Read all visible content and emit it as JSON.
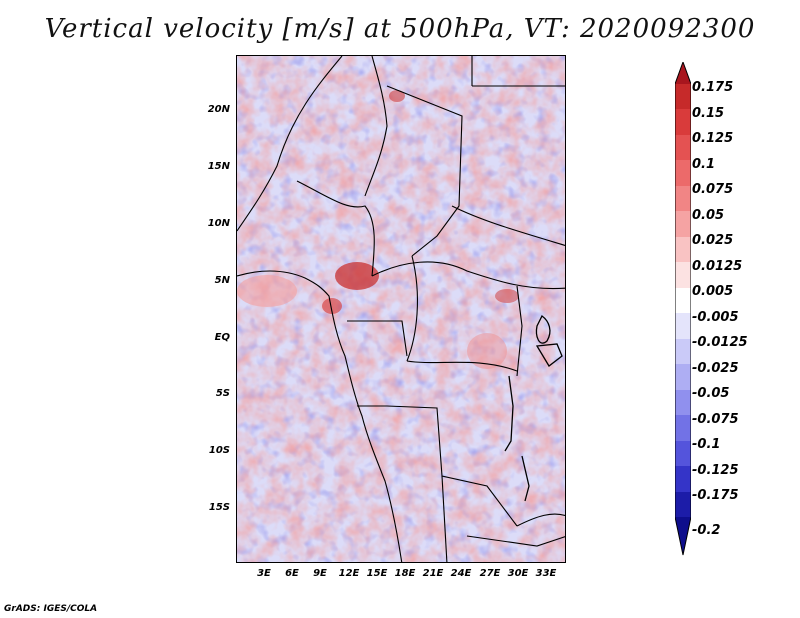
{
  "title": "Vertical velocity [m/s] at 500hPa, VT: 2020092300",
  "credit": "GrADS: IGES/COLA",
  "map": {
    "lat_labels": [
      "20N",
      "15N",
      "10N",
      "5N",
      "EQ",
      "5S",
      "10S",
      "15S"
    ],
    "lon_labels": [
      "3E",
      "6E",
      "9E",
      "12E",
      "15E",
      "18E",
      "21E",
      "24E",
      "27E",
      "30E",
      "33E"
    ],
    "lon_range": [
      0,
      35
    ],
    "lat_range": [
      -20,
      25
    ]
  },
  "colorbar": {
    "levels": [
      "0.175",
      "0.15",
      "0.125",
      "0.1",
      "0.075",
      "0.05",
      "0.025",
      "0.0125",
      "0.005",
      "-0.005",
      "-0.0125",
      "-0.025",
      "-0.05",
      "-0.075",
      "-0.1",
      "-0.125",
      "-0.175",
      "-0.2"
    ],
    "colors": [
      "#a8161e",
      "#c62a2a",
      "#d93b3b",
      "#e45252",
      "#ec6a6a",
      "#f18585",
      "#f5a3a3",
      "#f9c3c3",
      "#fce2e2",
      "#ffffff",
      "#e4e4fb",
      "#cacaf8",
      "#aeaef3",
      "#9090ee",
      "#7272e6",
      "#5454dc",
      "#3434c8",
      "#1c1ca8",
      "#0e0e8c"
    ]
  }
}
